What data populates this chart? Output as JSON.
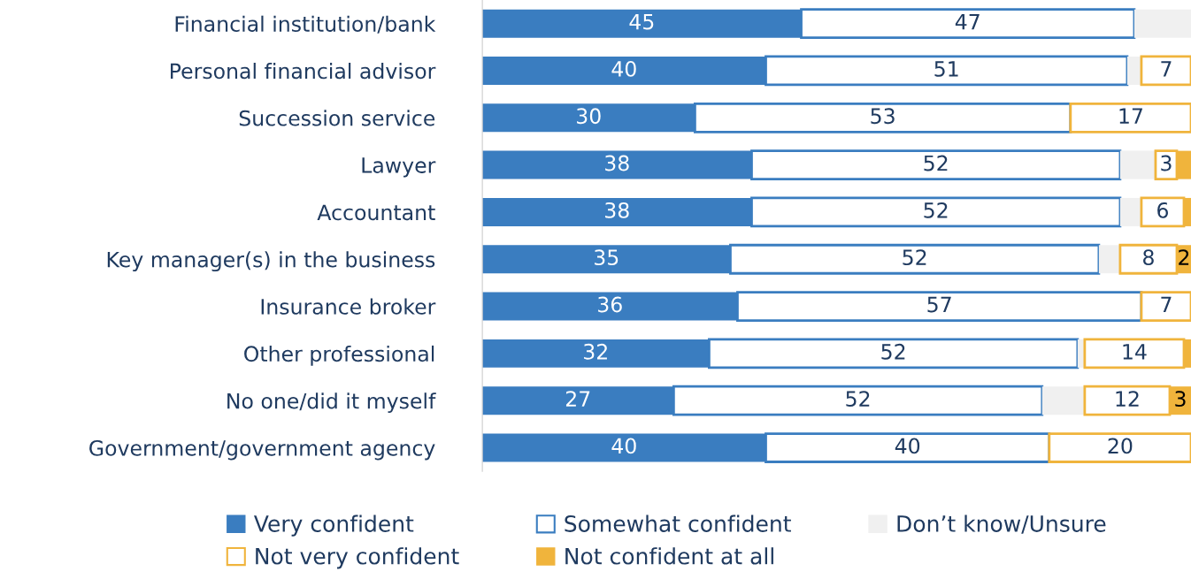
{
  "chart_data": {
    "type": "bar",
    "orientation": "horizontal",
    "stacked": true,
    "categories": [
      "Financial institution/bank",
      "Personal financial advisor",
      "Succession service",
      "Lawyer",
      "Accountant",
      "Key manager(s) in the business",
      "Insurance broker",
      "Other professional",
      "No one/did it myself",
      "Government/government agency"
    ],
    "series": [
      {
        "name": "Very confident",
        "color": "#3a7dc0",
        "values": [
          45,
          40,
          30,
          38,
          38,
          35,
          36,
          32,
          27,
          40
        ],
        "value_labels": [
          "45",
          "40",
          "30",
          "38",
          "38",
          "35",
          "36",
          "32",
          "27",
          "40"
        ]
      },
      {
        "name": "Somewhat confident",
        "color": "#3a7dc0",
        "line_style": "solid",
        "values": [
          47,
          51,
          53,
          52,
          52,
          52,
          57,
          52,
          52,
          40
        ],
        "value_labels": [
          "47",
          "51",
          "53",
          "52",
          "52",
          "52",
          "57",
          "52",
          "52",
          "40"
        ]
      },
      {
        "name": "Don’t know/Unsure",
        "color": "#f0f0f0",
        "values": [
          8,
          2,
          null,
          5,
          3,
          3,
          null,
          1,
          6,
          null
        ]
      },
      {
        "name": "Not very confident",
        "color": "#f0b43c",
        "line_style": "solid",
        "values": [
          null,
          7,
          17,
          3,
          6,
          8,
          7,
          14,
          12,
          20
        ],
        "value_labels": [
          null,
          "7",
          "17",
          "3",
          "6",
          "8",
          "7",
          "14",
          "12",
          "20"
        ]
      },
      {
        "name": "Not confident at all",
        "color": "#f0b43c",
        "values": [
          null,
          null,
          null,
          2,
          1,
          2,
          null,
          1,
          3,
          null
        ],
        "value_labels": [
          null,
          null,
          null,
          null,
          null,
          "2",
          null,
          null,
          "3",
          null
        ]
      }
    ],
    "xlim": [
      0,
      100
    ],
    "tick_labels": "y",
    "legend": "bottom"
  }
}
